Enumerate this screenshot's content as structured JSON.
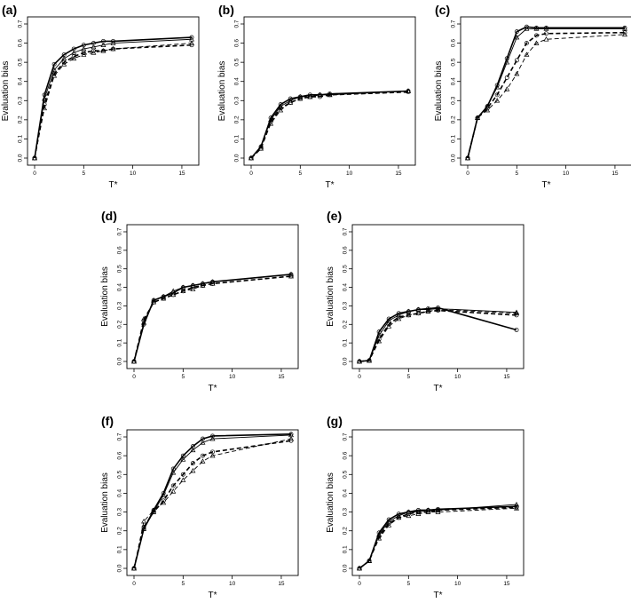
{
  "chart_data": [
    {
      "panel": "(a)",
      "type": "line",
      "xlabel": "T*",
      "ylabel": "Evaluation bias",
      "xlim": [
        0,
        16
      ],
      "ylim": [
        0,
        0.7
      ],
      "xticks": [
        "0",
        "5",
        "10",
        "15"
      ],
      "yticks": [
        "0.0",
        "0.1",
        "0.2",
        "0.3",
        "0.4",
        "0.5",
        "0.6",
        "0.7"
      ],
      "x": [
        0,
        1,
        2,
        3,
        4,
        5,
        6,
        7,
        8,
        16
      ],
      "series": [
        {
          "style": "solid-thick",
          "marker": "circle",
          "values": [
            0,
            0.33,
            0.49,
            0.54,
            0.57,
            0.59,
            0.6,
            0.61,
            0.61,
            0.63
          ]
        },
        {
          "style": "solid-thin",
          "marker": "triangle",
          "values": [
            0,
            0.31,
            0.46,
            0.52,
            0.55,
            0.57,
            0.58,
            0.59,
            0.6,
            0.62
          ]
        },
        {
          "style": "dashed-thick",
          "marker": "circle",
          "values": [
            0,
            0.28,
            0.44,
            0.5,
            0.53,
            0.55,
            0.56,
            0.56,
            0.57,
            0.59
          ]
        },
        {
          "style": "dashed-thin",
          "marker": "triangle",
          "values": [
            0,
            0.26,
            0.43,
            0.49,
            0.52,
            0.54,
            0.55,
            0.56,
            0.57,
            0.6
          ]
        }
      ]
    },
    {
      "panel": "(b)",
      "type": "line",
      "xlabel": "T*",
      "ylabel": "Evaluation bias",
      "xlim": [
        0,
        16
      ],
      "ylim": [
        0,
        0.7
      ],
      "xticks": [
        "0",
        "5",
        "10",
        "15"
      ],
      "yticks": [
        "0.0",
        "0.1",
        "0.2",
        "0.3",
        "0.4",
        "0.5",
        "0.6",
        "0.7"
      ],
      "x": [
        0,
        1,
        2,
        3,
        4,
        5,
        6,
        7,
        8,
        16
      ],
      "series": [
        {
          "style": "solid-thick",
          "marker": "circle",
          "values": [
            0,
            0.06,
            0.21,
            0.28,
            0.31,
            0.32,
            0.33,
            0.33,
            0.335,
            0.35
          ]
        },
        {
          "style": "solid-thin",
          "marker": "triangle",
          "values": [
            0,
            0.06,
            0.2,
            0.27,
            0.3,
            0.32,
            0.32,
            0.33,
            0.33,
            0.35
          ]
        },
        {
          "style": "dashed-thick",
          "marker": "circle",
          "values": [
            0,
            0.05,
            0.19,
            0.26,
            0.29,
            0.31,
            0.32,
            0.32,
            0.33,
            0.345
          ]
        },
        {
          "style": "dashed-thin",
          "marker": "triangle",
          "values": [
            0,
            0.05,
            0.18,
            0.25,
            0.29,
            0.31,
            0.32,
            0.33,
            0.33,
            0.35
          ]
        }
      ]
    },
    {
      "panel": "(c)",
      "type": "line",
      "xlabel": "T*",
      "ylabel": "Evaluation bias",
      "xlim": [
        0,
        16
      ],
      "ylim": [
        0,
        0.7
      ],
      "xticks": [
        "0",
        "5",
        "10",
        "15"
      ],
      "yticks": [
        "0.0",
        "0.1",
        "0.2",
        "0.3",
        "0.4",
        "0.5",
        "0.6",
        "0.7"
      ],
      "x": [
        0,
        1,
        2,
        3,
        4,
        5,
        6,
        7,
        8,
        16
      ],
      "series": [
        {
          "style": "solid-thick",
          "marker": "circle",
          "values": [
            0,
            0.21,
            0.27,
            0.38,
            0.52,
            0.66,
            0.685,
            0.68,
            0.68,
            0.68
          ]
        },
        {
          "style": "solid-thin",
          "marker": "triangle",
          "values": [
            0,
            0.21,
            0.27,
            0.37,
            0.5,
            0.63,
            0.675,
            0.675,
            0.675,
            0.675
          ]
        },
        {
          "style": "dashed-thick",
          "marker": "circle",
          "values": [
            0,
            0.21,
            0.26,
            0.33,
            0.42,
            0.51,
            0.6,
            0.64,
            0.65,
            0.655
          ]
        },
        {
          "style": "dashed-thin",
          "marker": "triangle",
          "values": [
            0,
            0.21,
            0.25,
            0.3,
            0.36,
            0.44,
            0.54,
            0.6,
            0.62,
            0.645
          ]
        }
      ]
    },
    {
      "panel": "(d)",
      "type": "line",
      "xlabel": "T*",
      "ylabel": "Evaluation bias",
      "xlim": [
        0,
        16
      ],
      "ylim": [
        0,
        0.7
      ],
      "xticks": [
        "0",
        "5",
        "10",
        "15"
      ],
      "yticks": [
        "0.0",
        "0.1",
        "0.2",
        "0.3",
        "0.4",
        "0.5",
        "0.6",
        "0.7"
      ],
      "x": [
        0,
        1,
        2,
        3,
        4,
        5,
        6,
        7,
        8,
        16
      ],
      "series": [
        {
          "style": "solid-thick",
          "marker": "circle",
          "values": [
            0,
            0.2,
            0.33,
            0.35,
            0.37,
            0.4,
            0.41,
            0.42,
            0.43,
            0.47
          ]
        },
        {
          "style": "solid-thin",
          "marker": "triangle",
          "values": [
            0,
            0.21,
            0.33,
            0.35,
            0.38,
            0.4,
            0.41,
            0.42,
            0.43,
            0.47
          ]
        },
        {
          "style": "dashed-thick",
          "marker": "circle",
          "values": [
            0,
            0.22,
            0.32,
            0.34,
            0.36,
            0.38,
            0.4,
            0.41,
            0.42,
            0.46
          ]
        },
        {
          "style": "dashed-thin",
          "marker": "triangle",
          "values": [
            0,
            0.23,
            0.32,
            0.34,
            0.36,
            0.38,
            0.39,
            0.41,
            0.42,
            0.46
          ]
        }
      ]
    },
    {
      "panel": "(e)",
      "type": "line",
      "xlabel": "T*",
      "ylabel": "Evaluation bias",
      "xlim": [
        0,
        16
      ],
      "ylim": [
        0,
        0.7
      ],
      "xticks": [
        "0",
        "5",
        "10",
        "15"
      ],
      "yticks": [
        "0.0",
        "0.1",
        "0.2",
        "0.3",
        "0.4",
        "0.5",
        "0.6",
        "0.7"
      ],
      "x": [
        0,
        1,
        2,
        3,
        4,
        5,
        6,
        7,
        8,
        16
      ],
      "series": [
        {
          "style": "solid-thick",
          "marker": "circle",
          "values": [
            0,
            0.005,
            0.16,
            0.23,
            0.26,
            0.27,
            0.28,
            0.285,
            0.29,
            0.17
          ]
        },
        {
          "style": "solid-thin",
          "marker": "triangle",
          "values": [
            0,
            0.005,
            0.14,
            0.22,
            0.25,
            0.27,
            0.28,
            0.28,
            0.285,
            0.265
          ]
        },
        {
          "style": "dashed-thick",
          "marker": "circle",
          "values": [
            0,
            0.005,
            0.12,
            0.2,
            0.24,
            0.25,
            0.26,
            0.27,
            0.275,
            0.25
          ]
        },
        {
          "style": "dashed-thin",
          "marker": "triangle",
          "values": [
            0,
            0.005,
            0.11,
            0.19,
            0.23,
            0.25,
            0.26,
            0.27,
            0.28,
            0.26
          ]
        }
      ]
    },
    {
      "panel": "(f)",
      "type": "line",
      "xlabel": "T*",
      "ylabel": "Evaluation bias",
      "xlim": [
        0,
        16
      ],
      "ylim": [
        0,
        0.7
      ],
      "xticks": [
        "0",
        "5",
        "10",
        "15"
      ],
      "yticks": [
        "0.0",
        "0.1",
        "0.2",
        "0.3",
        "0.4",
        "0.5",
        "0.6",
        "0.7"
      ],
      "x": [
        0,
        1,
        2,
        3,
        4,
        5,
        6,
        7,
        8,
        16
      ],
      "series": [
        {
          "style": "solid-thick",
          "marker": "circle",
          "values": [
            0,
            0.21,
            0.31,
            0.4,
            0.53,
            0.6,
            0.65,
            0.69,
            0.705,
            0.715
          ]
        },
        {
          "style": "solid-thin",
          "marker": "triangle",
          "values": [
            0,
            0.21,
            0.3,
            0.39,
            0.51,
            0.58,
            0.63,
            0.67,
            0.69,
            0.71
          ]
        },
        {
          "style": "dashed-thick",
          "marker": "circle",
          "values": [
            0,
            0.22,
            0.3,
            0.36,
            0.44,
            0.5,
            0.56,
            0.6,
            0.62,
            0.68
          ]
        },
        {
          "style": "dashed-thin",
          "marker": "triangle",
          "values": [
            0,
            0.25,
            0.31,
            0.35,
            0.41,
            0.47,
            0.52,
            0.57,
            0.6,
            0.69
          ]
        }
      ]
    },
    {
      "panel": "(g)",
      "type": "line",
      "xlabel": "T*",
      "ylabel": "Evaluation bias",
      "xlim": [
        0,
        16
      ],
      "ylim": [
        0,
        0.7
      ],
      "xticks": [
        "0",
        "5",
        "10",
        "15"
      ],
      "yticks": [
        "0.0",
        "0.1",
        "0.2",
        "0.3",
        "0.4",
        "0.5",
        "0.6",
        "0.7"
      ],
      "x": [
        0,
        1,
        2,
        3,
        4,
        5,
        6,
        7,
        8,
        16
      ],
      "series": [
        {
          "style": "solid-thick",
          "marker": "circle",
          "values": [
            0,
            0.04,
            0.19,
            0.26,
            0.29,
            0.3,
            0.31,
            0.31,
            0.315,
            0.33
          ]
        },
        {
          "style": "solid-thin",
          "marker": "triangle",
          "values": [
            0,
            0.04,
            0.18,
            0.25,
            0.28,
            0.3,
            0.3,
            0.31,
            0.31,
            0.34
          ]
        },
        {
          "style": "dashed-thick",
          "marker": "circle",
          "values": [
            0,
            0.04,
            0.17,
            0.24,
            0.27,
            0.29,
            0.3,
            0.3,
            0.31,
            0.325
          ]
        },
        {
          "style": "dashed-thin",
          "marker": "triangle",
          "values": [
            0,
            0.04,
            0.16,
            0.23,
            0.27,
            0.28,
            0.29,
            0.3,
            0.3,
            0.32
          ]
        }
      ]
    }
  ]
}
